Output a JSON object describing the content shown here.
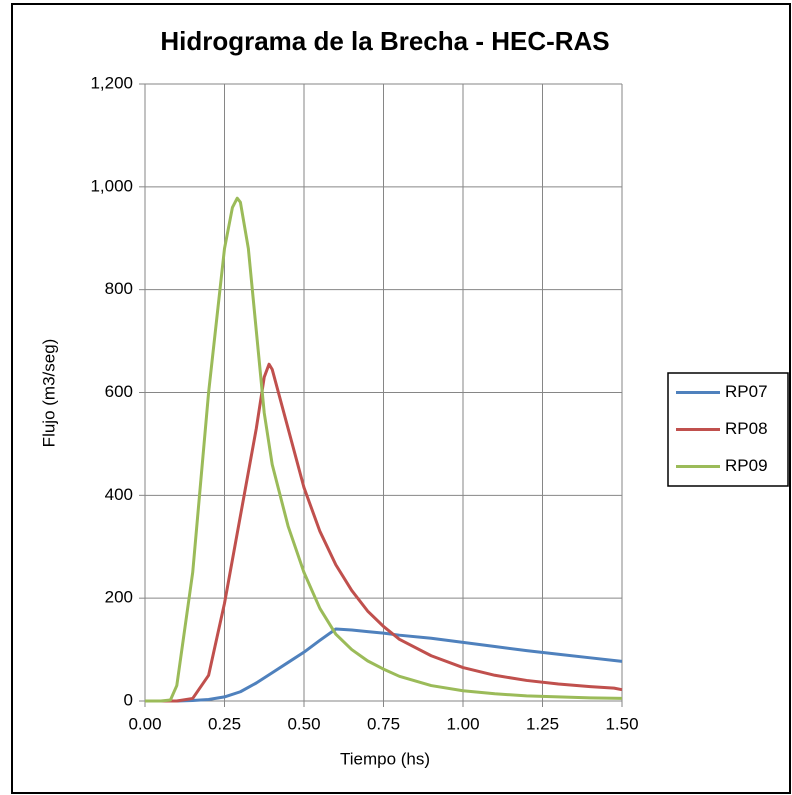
{
  "chart_data": {
    "type": "line",
    "title": "Hidrograma de la Brecha - HEC-RAS",
    "xlabel": "Tiempo (hs)",
    "ylabel": "Flujo (m3/seg)",
    "xlim": [
      0,
      1.5
    ],
    "ylim": [
      0,
      1200
    ],
    "xticks": [
      {
        "value": 0,
        "label": "0.00"
      },
      {
        "value": 0.25,
        "label": "0.25"
      },
      {
        "value": 0.5,
        "label": "0.50"
      },
      {
        "value": 0.75,
        "label": "0.75"
      },
      {
        "value": 1,
        "label": "1.00"
      },
      {
        "value": 1.25,
        "label": "1.25"
      },
      {
        "value": 1.5,
        "label": "1.50"
      }
    ],
    "yticks": [
      0,
      200,
      400,
      600,
      800,
      {
        "value": 1000,
        "label": "1,000"
      },
      {
        "value": 1200,
        "label": "1,200"
      }
    ],
    "grid": true,
    "legend": "right",
    "series": [
      {
        "name": "RP07",
        "color": "#4f81bd",
        "x": [
          0,
          0.1,
          0.15,
          0.2,
          0.25,
          0.3,
          0.35,
          0.4,
          0.45,
          0.5,
          0.55,
          0.6,
          0.65,
          0.7,
          0.75,
          0.8,
          0.9,
          1.0,
          1.1,
          1.2,
          1.3,
          1.4,
          1.5
        ],
        "values": [
          0,
          0,
          1,
          3,
          8,
          18,
          35,
          55,
          75,
          95,
          118,
          140,
          138,
          135,
          132,
          128,
          122,
          114,
          106,
          98,
          91,
          84,
          77
        ]
      },
      {
        "name": "RP08",
        "color": "#c0504d",
        "x": [
          0,
          0.08,
          0.1,
          0.15,
          0.2,
          0.25,
          0.3,
          0.35,
          0.375,
          0.39,
          0.4,
          0.45,
          0.5,
          0.55,
          0.6,
          0.65,
          0.7,
          0.75,
          0.8,
          0.9,
          1.0,
          1.1,
          1.2,
          1.3,
          1.4,
          1.475,
          1.5
        ],
        "values": [
          0,
          0,
          0,
          5,
          50,
          190,
          360,
          530,
          630,
          655,
          645,
          530,
          415,
          330,
          265,
          215,
          175,
          145,
          120,
          88,
          65,
          50,
          40,
          33,
          28,
          25,
          22
        ]
      },
      {
        "name": "RP09",
        "color": "#9bbb59",
        "x": [
          0,
          0.05,
          0.08,
          0.1,
          0.15,
          0.2,
          0.25,
          0.275,
          0.29,
          0.3,
          0.325,
          0.35,
          0.375,
          0.4,
          0.45,
          0.5,
          0.55,
          0.6,
          0.65,
          0.7,
          0.75,
          0.8,
          0.9,
          1.0,
          1.1,
          1.2,
          1.3,
          1.4,
          1.5
        ],
        "values": [
          0,
          0,
          2,
          30,
          250,
          600,
          880,
          960,
          978,
          970,
          880,
          720,
          560,
          460,
          340,
          250,
          180,
          130,
          100,
          78,
          62,
          48,
          30,
          20,
          14,
          10,
          8,
          6,
          5
        ]
      }
    ]
  }
}
